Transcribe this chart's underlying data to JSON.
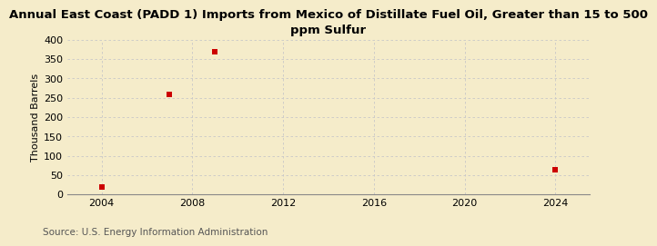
{
  "title": "Annual East Coast (PADD 1) Imports from Mexico of Distillate Fuel Oil, Greater than 15 to 500\nppm Sulfur",
  "ylabel": "Thousand Barrels",
  "source": "Source: U.S. Energy Information Administration",
  "background_color": "#f5ecca",
  "plot_background_color": "#f5ecca",
  "data_x": [
    2004,
    2007,
    2009,
    2024
  ],
  "data_y": [
    20,
    258,
    368,
    65
  ],
  "marker_color": "#cc0000",
  "marker_size": 4,
  "xlim": [
    2002.5,
    2025.5
  ],
  "ylim": [
    0,
    400
  ],
  "xticks": [
    2004,
    2008,
    2012,
    2016,
    2020,
    2024
  ],
  "yticks": [
    0,
    50,
    100,
    150,
    200,
    250,
    300,
    350,
    400
  ],
  "grid_color": "#c8c8c8",
  "title_fontsize": 9.5,
  "axis_fontsize": 8,
  "source_fontsize": 7.5,
  "tick_fontsize": 8
}
